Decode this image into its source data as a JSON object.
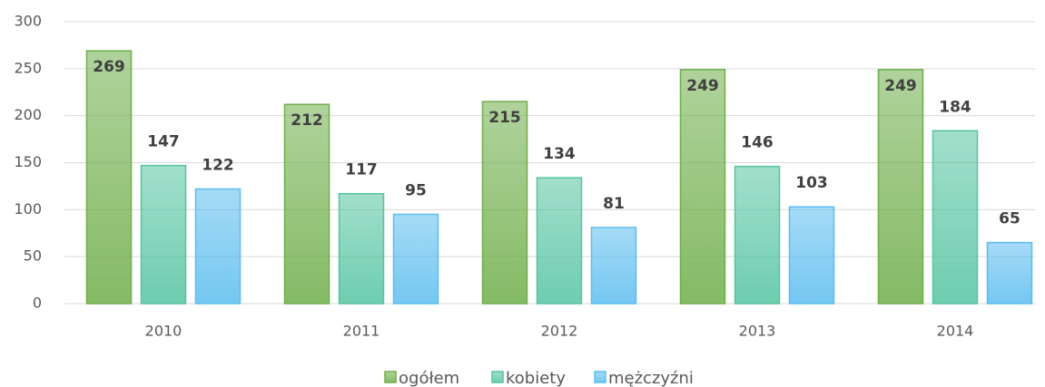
{
  "chart_data": {
    "type": "bar",
    "categories": [
      "2010",
      "2011",
      "2012",
      "2013",
      "2014"
    ],
    "series": [
      {
        "name": "ogółem",
        "color": "#6fae4a",
        "values": [
          269,
          212,
          215,
          249,
          249
        ]
      },
      {
        "name": "kobiety",
        "color": "#55c4a1",
        "values": [
          147,
          117,
          134,
          146,
          184
        ]
      },
      {
        "name": "mężczyźni",
        "color": "#5cbdef",
        "values": [
          122,
          95,
          81,
          103,
          65
        ]
      }
    ],
    "ylim": [
      0,
      300
    ],
    "yticks": [
      0,
      50,
      100,
      150,
      200,
      250,
      300
    ],
    "grid": true,
    "legend": "bottom"
  }
}
